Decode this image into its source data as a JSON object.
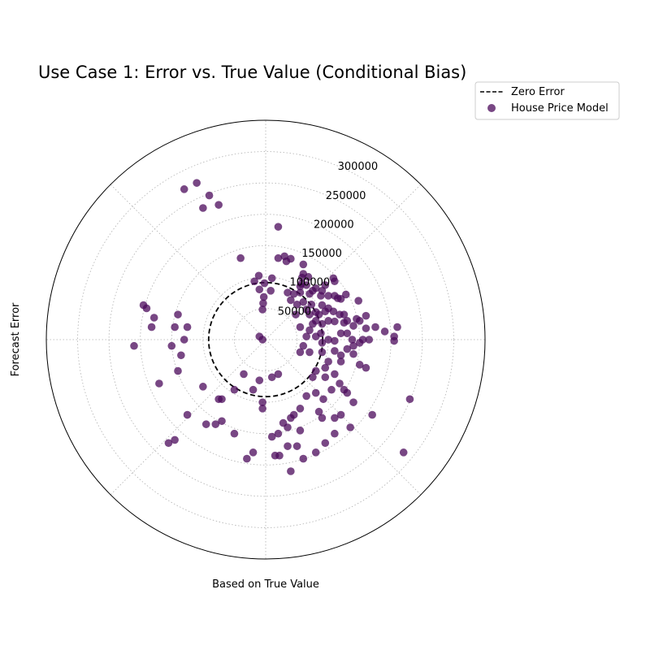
{
  "chart_data": {
    "type": "scatter",
    "projection": "polar",
    "title": "Use Case 1: Error vs. True Value (Conditional Bias)",
    "xlabel": "Based on True Value",
    "ylabel": "Forecast Error",
    "rlim": [
      0,
      350000
    ],
    "rticks": [
      50000,
      100000,
      150000,
      200000,
      250000,
      300000
    ],
    "rtick_labels": [
      "50000",
      "100000",
      "150000",
      "200000",
      "250000",
      "300000"
    ],
    "grid": true,
    "legend_position": "top-right",
    "colors": {
      "series": "#4b0a5b",
      "reference": "#000000",
      "grid": "#b0b0b0"
    },
    "series": [
      {
        "name": "Zero Error",
        "kind": "reference-circle",
        "r": 91000,
        "style": "dashed"
      },
      {
        "name": "House Price Model",
        "kind": "scatter",
        "points": [
          [
            -2,
            90
          ],
          [
            -11,
            102
          ],
          [
            -5,
            48
          ],
          [
            -4,
            58
          ],
          [
            -3,
            68
          ],
          [
            8,
            78
          ],
          [
            10,
            98
          ],
          [
            -18,
            93
          ],
          [
            -10,
            80
          ],
          [
            20,
            130
          ],
          [
            30,
            133
          ],
          [
            33,
            125
          ],
          [
            40,
            129
          ],
          [
            60,
            120
          ],
          [
            58,
            99
          ],
          [
            60,
            105
          ],
          [
            68,
            100
          ],
          [
            57,
            89
          ],
          [
            55,
            85
          ],
          [
            65,
            87
          ],
          [
            80,
            82
          ],
          [
            90,
            78
          ],
          [
            88,
            70
          ],
          [
            100,
            70
          ],
          [
            110,
            70
          ],
          [
            115,
            66
          ],
          [
            120,
            65
          ],
          [
            73,
            56
          ],
          [
            90,
            55
          ],
          [
            100,
            50
          ],
          [
            108,
            45
          ],
          [
            118,
            40
          ],
          [
            125,
            40
          ],
          [
            145,
            33
          ],
          [
            150,
            30
          ],
          [
            140,
            22
          ],
          [
            160,
            18
          ],
          [
            175,
            20
          ],
          [
            190,
            13
          ],
          [
            210,
            20
          ],
          [
            205,
            5
          ],
          [
            120,
            10
          ],
          [
            80,
            44
          ],
          [
            85,
            40
          ],
          [
            95,
            45
          ],
          [
            48,
            40
          ],
          [
            60,
            60
          ],
          [
            65,
            48
          ],
          [
            70,
            40
          ],
          [
            80,
            30
          ],
          [
            90,
            25
          ],
          [
            100,
            30
          ],
          [
            110,
            29
          ],
          [
            130,
            10
          ],
          [
            125,
            27
          ],
          [
            130,
            30
          ],
          [
            155,
            0
          ],
          [
            165,
            0
          ],
          [
            138,
            0
          ],
          [
            100,
            0
          ],
          [
            88,
            10
          ],
          [
            70,
            15
          ],
          [
            55,
            20
          ],
          [
            75,
            25
          ],
          [
            65,
            5
          ],
          [
            80,
            5
          ],
          [
            35,
            75
          ],
          [
            45,
            73
          ],
          [
            55,
            75
          ],
          [
            40,
            63
          ],
          [
            50,
            56
          ],
          [
            70,
            73
          ],
          [
            75,
            78
          ],
          [
            95,
            87
          ],
          [
            108,
            98
          ],
          [
            110,
            93
          ],
          [
            128,
            72
          ],
          [
            148,
            62
          ],
          [
            160,
            38
          ],
          [
            205,
            -2
          ],
          [
            110,
            -2
          ],
          [
            90,
            -5
          ],
          [
            60,
            -10
          ],
          [
            55,
            -20
          ],
          [
            70,
            -20
          ],
          [
            90,
            -20
          ],
          [
            110,
            -18
          ],
          [
            120,
            -25
          ],
          [
            130,
            -15
          ],
          [
            140,
            -10
          ],
          [
            150,
            -5
          ],
          [
            140,
            -23
          ],
          [
            120,
            -35
          ],
          [
            150,
            -40
          ],
          [
            160,
            -45
          ],
          [
            100,
            -35
          ],
          [
            95,
            -45
          ],
          [
            80,
            -50
          ],
          [
            75,
            -60
          ],
          [
            95,
            -60
          ],
          [
            110,
            -55
          ],
          [
            118,
            -70
          ],
          [
            125,
            -80
          ],
          [
            105,
            -80
          ],
          [
            92,
            -95
          ],
          [
            80,
            -85
          ],
          [
            65,
            -90
          ],
          [
            55,
            -110
          ],
          [
            45,
            -120
          ],
          [
            40,
            -125
          ],
          [
            35,
            -140
          ],
          [
            28,
            -133
          ],
          [
            20,
            -150
          ],
          [
            10,
            -155
          ],
          [
            15,
            -185
          ],
          [
            22,
            -185
          ],
          [
            35,
            -170
          ],
          [
            50,
            -170
          ],
          [
            55,
            -145
          ],
          [
            85,
            -115
          ],
          [
            90,
            -125
          ],
          [
            110,
            -125
          ],
          [
            120,
            -120
          ],
          [
            130,
            -85
          ],
          [
            140,
            -100
          ],
          [
            170,
            -120
          ],
          [
            135,
            -140
          ],
          [
            110,
            -150
          ],
          [
            95,
            -165
          ],
          [
            80,
            -180
          ],
          [
            60,
            -190
          ],
          [
            40,
            -210
          ],
          [
            230,
            -95
          ],
          [
            220,
            -180
          ],
          [
            20,
            180
          ],
          [
            -40,
            130
          ],
          [
            -75,
            215
          ],
          [
            -90,
            230
          ],
          [
            -110,
            250
          ],
          [
            -130,
            240
          ],
          [
            -100,
            210
          ],
          [
            -140,
            40
          ],
          [
            -145,
            20
          ],
          [
            -125,
            20
          ],
          [
            -130,
            0
          ],
          [
            -195,
            55
          ],
          [
            -178,
            35
          ],
          [
            -182,
            20
          ],
          [
            -210,
            -10
          ],
          [
            -190,
            50
          ],
          [
            -150,
            -10
          ],
          [
            -135,
            -25
          ],
          [
            -140,
            -50
          ],
          [
            -170,
            -70
          ],
          [
            -100,
            -75
          ],
          [
            -75,
            -95
          ],
          [
            -10,
            5
          ],
          [
            -5,
            0
          ],
          [
            -50,
            -80
          ],
          [
            -35,
            -55
          ],
          [
            -95,
            -135
          ],
          [
            -80,
            -135
          ],
          [
            -125,
            -120
          ],
          [
            -70,
            -95
          ],
          [
            -50,
            -150
          ],
          [
            -30,
            -190
          ],
          [
            -145,
            -160
          ],
          [
            -155,
            -165
          ],
          [
            -20,
            -180
          ],
          [
            -20,
            -80
          ],
          [
            -10,
            -65
          ],
          [
            10,
            -60
          ],
          [
            20,
            -55
          ],
          [
            -5,
            -100
          ],
          [
            -5,
            -110
          ],
          [
            -70,
            -130
          ]
        ]
      }
    ]
  },
  "legend": {
    "items": [
      {
        "label": "Zero Error",
        "marker": "dashed-line"
      },
      {
        "label": "House Price Model",
        "marker": "circle"
      }
    ]
  }
}
